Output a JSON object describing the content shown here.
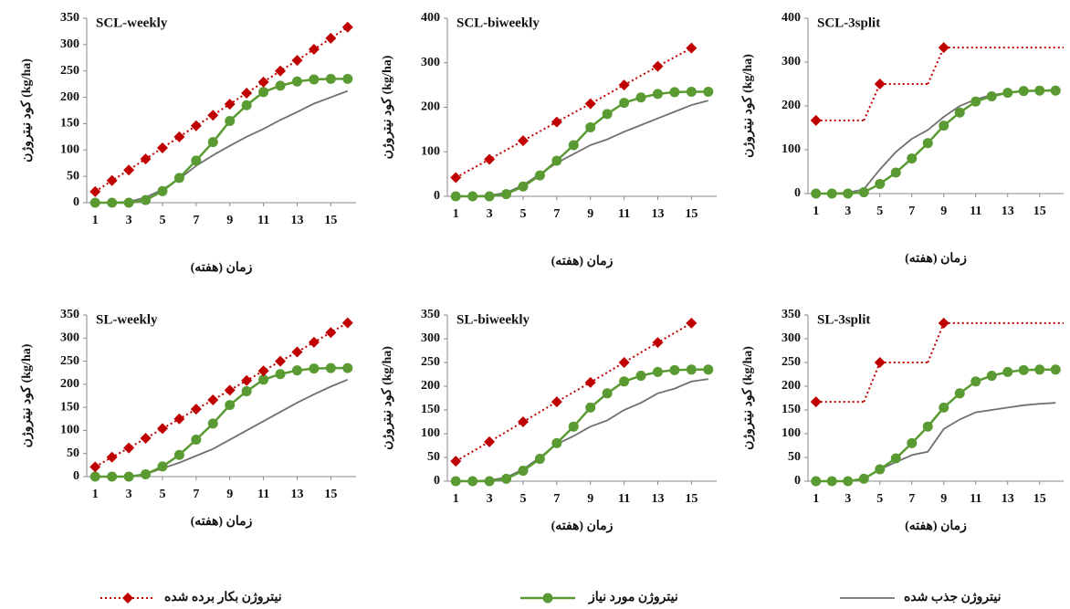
{
  "chart_data": [
    {
      "type": "line",
      "title": "SCL-weekly",
      "ylabel": "کود نیتروژن (kg/ha)",
      "xlabel": "زمان (هفته)",
      "x": [
        1,
        2,
        3,
        4,
        5,
        6,
        7,
        8,
        9,
        10,
        11,
        12,
        13,
        14,
        15,
        16
      ],
      "xlim": [
        0.5,
        16.5
      ],
      "xticks": [
        1,
        3,
        5,
        7,
        9,
        11,
        13,
        15
      ],
      "ylim": [
        0,
        350
      ],
      "yticks": [
        0,
        50,
        100,
        150,
        200,
        250,
        300,
        350
      ],
      "series": [
        {
          "values": [
            21,
            42,
            62,
            83,
            104,
            125,
            146,
            166,
            187,
            208,
            229,
            250,
            270,
            291,
            312,
            333
          ]
        },
        {
          "values": [
            0,
            0,
            0,
            5,
            22,
            47,
            80,
            115,
            155,
            185,
            210,
            222,
            230,
            234,
            235,
            235
          ]
        },
        {
          "values": [
            0,
            0,
            2,
            10,
            25,
            45,
            70,
            90,
            108,
            125,
            140,
            157,
            172,
            188,
            200,
            212
          ]
        }
      ]
    },
    {
      "type": "line",
      "title": "SCL-biweekly",
      "ylabel": "کود نیتروژن (kg/ha)",
      "xlabel": "زمان (هفته)",
      "x": [
        1,
        2,
        3,
        4,
        5,
        6,
        7,
        8,
        9,
        10,
        11,
        12,
        13,
        14,
        15,
        16
      ],
      "xlim": [
        0.5,
        16.5
      ],
      "xticks": [
        1,
        3,
        5,
        7,
        9,
        11,
        13,
        15
      ],
      "ylim": [
        0,
        400
      ],
      "yticks": [
        0,
        100,
        200,
        300,
        400
      ],
      "series": [
        {
          "x": [
            1,
            3,
            5,
            7,
            9,
            11,
            13,
            15
          ],
          "values": [
            42,
            83,
            125,
            167,
            208,
            250,
            292,
            333
          ]
        },
        {
          "values": [
            0,
            0,
            0,
            5,
            22,
            47,
            80,
            115,
            155,
            185,
            210,
            222,
            230,
            234,
            235,
            235
          ]
        },
        {
          "values": [
            0,
            0,
            2,
            8,
            25,
            50,
            75,
            95,
            115,
            128,
            145,
            160,
            175,
            190,
            205,
            215
          ]
        }
      ]
    },
    {
      "type": "line",
      "title": "SCL-3split",
      "ylabel": "کود نیتروژن (kg/ha)",
      "xlabel": "زمان (هفته)",
      "x": [
        1,
        2,
        3,
        4,
        5,
        6,
        7,
        8,
        9,
        10,
        11,
        12,
        13,
        14,
        15,
        16
      ],
      "xlim": [
        0.5,
        16.5
      ],
      "xticks": [
        1,
        3,
        5,
        7,
        9,
        11,
        13,
        15
      ],
      "ylim": [
        0,
        400
      ],
      "yticks": [
        0,
        100,
        200,
        300,
        400
      ],
      "series": [
        {
          "x": [
            1,
            5,
            9
          ],
          "values": [
            167,
            250,
            333
          ],
          "step": true
        },
        {
          "values": [
            0,
            0,
            0,
            3,
            22,
            48,
            80,
            115,
            155,
            185,
            210,
            222,
            230,
            234,
            235,
            235
          ]
        },
        {
          "values": [
            0,
            0,
            2,
            10,
            55,
            95,
            125,
            145,
            175,
            200,
            215,
            225,
            230,
            233,
            235,
            237
          ]
        }
      ]
    },
    {
      "type": "line",
      "title": "SL-weekly",
      "ylabel": "کود نیتروژن (kg/ha)",
      "xlabel": "زمان (هفته)",
      "x": [
        1,
        2,
        3,
        4,
        5,
        6,
        7,
        8,
        9,
        10,
        11,
        12,
        13,
        14,
        15,
        16
      ],
      "xlim": [
        0.5,
        16.5
      ],
      "xticks": [
        1,
        3,
        5,
        7,
        9,
        11,
        13,
        15
      ],
      "ylim": [
        0,
        350
      ],
      "yticks": [
        0,
        50,
        100,
        150,
        200,
        250,
        300,
        350
      ],
      "series": [
        {
          "values": [
            21,
            42,
            62,
            83,
            104,
            125,
            146,
            166,
            187,
            208,
            229,
            250,
            270,
            291,
            312,
            333
          ]
        },
        {
          "values": [
            0,
            0,
            0,
            5,
            22,
            47,
            80,
            115,
            155,
            185,
            210,
            222,
            230,
            234,
            235,
            235
          ]
        },
        {
          "values": [
            0,
            0,
            0,
            5,
            18,
            30,
            45,
            60,
            80,
            100,
            120,
            140,
            160,
            178,
            195,
            210
          ]
        }
      ]
    },
    {
      "type": "line",
      "title": "SL-biweekly",
      "ylabel": "کود نیتروژن (kg/ha)",
      "xlabel": "زمان (هفته)",
      "x": [
        1,
        2,
        3,
        4,
        5,
        6,
        7,
        8,
        9,
        10,
        11,
        12,
        13,
        14,
        15,
        16
      ],
      "xlim": [
        0.5,
        16.5
      ],
      "xticks": [
        1,
        3,
        5,
        7,
        9,
        11,
        13,
        15
      ],
      "ylim": [
        0,
        350
      ],
      "yticks": [
        0,
        50,
        100,
        150,
        200,
        250,
        300,
        350
      ],
      "series": [
        {
          "x": [
            1,
            3,
            5,
            7,
            9,
            11,
            13,
            15
          ],
          "values": [
            42,
            83,
            125,
            167,
            208,
            250,
            292,
            333
          ]
        },
        {
          "values": [
            0,
            0,
            0,
            5,
            22,
            47,
            80,
            115,
            155,
            185,
            210,
            222,
            230,
            234,
            235,
            235
          ]
        },
        {
          "values": [
            0,
            0,
            2,
            8,
            25,
            50,
            78,
            95,
            115,
            128,
            150,
            165,
            185,
            195,
            210,
            215
          ]
        }
      ]
    },
    {
      "type": "line",
      "title": "SL-3split",
      "ylabel": "کود نیتروژن (kg/ha)",
      "xlabel": "زمان (هفته)",
      "x": [
        1,
        2,
        3,
        4,
        5,
        6,
        7,
        8,
        9,
        10,
        11,
        12,
        13,
        14,
        15,
        16
      ],
      "xlim": [
        0.5,
        16.5
      ],
      "xticks": [
        1,
        3,
        5,
        7,
        9,
        11,
        13,
        15
      ],
      "ylim": [
        0,
        350
      ],
      "yticks": [
        0,
        50,
        100,
        150,
        200,
        250,
        300,
        350
      ],
      "series": [
        {
          "x": [
            1,
            5,
            9
          ],
          "values": [
            167,
            250,
            333
          ],
          "step": true
        },
        {
          "values": [
            0,
            0,
            0,
            5,
            25,
            48,
            80,
            115,
            155,
            185,
            210,
            222,
            230,
            234,
            235,
            235
          ]
        },
        {
          "values": [
            0,
            0,
            0,
            5,
            25,
            40,
            55,
            62,
            110,
            130,
            145,
            150,
            155,
            160,
            163,
            165
          ]
        }
      ]
    }
  ],
  "legend": {
    "items": [
      {
        "name": "نیتروژن بکار برده شده",
        "color": "#c00000",
        "style": "dotted-diamond"
      },
      {
        "name": "نیتروژن مورد نیاز",
        "color": "#5a9a32",
        "style": "solid-circle"
      },
      {
        "name": "نیتروژن جذب شده",
        "color": "#707070",
        "style": "solid"
      }
    ]
  }
}
